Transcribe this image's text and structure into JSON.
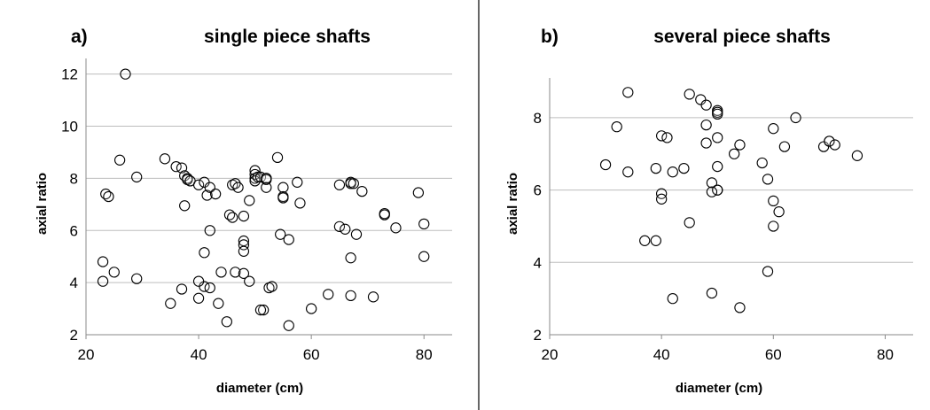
{
  "chart_data": [
    {
      "type": "scatter",
      "panel_label": "a)",
      "title": "single piece shafts",
      "xlabel": "diameter (cm)",
      "ylabel": "axial ratio",
      "xlim": [
        20,
        85
      ],
      "ylim": [
        2,
        12.6
      ],
      "xticks": [
        20,
        40,
        60,
        80
      ],
      "yticks": [
        2,
        4,
        6,
        8,
        10,
        12
      ],
      "grid": "horizontal",
      "legend": "none",
      "x": [
        27,
        26,
        29,
        23.5,
        24,
        23,
        23,
        25,
        29,
        34,
        36,
        37,
        37.5,
        38,
        38,
        38.5,
        37.5,
        40,
        41,
        41.5,
        42,
        43,
        41,
        42,
        41,
        40,
        42,
        35,
        37,
        43.5,
        44,
        45,
        40,
        45.5,
        46,
        46.5,
        46,
        47,
        48,
        48,
        48,
        48,
        46.5,
        48,
        49,
        49,
        50,
        50,
        50,
        50,
        50.5,
        51,
        52,
        52,
        52,
        52,
        51.5,
        52.5,
        54,
        55,
        55,
        55,
        54.5,
        56,
        57.5,
        58,
        53,
        51,
        56,
        60,
        63,
        65,
        65,
        66,
        67,
        67,
        67.5,
        68,
        69,
        67,
        71,
        67,
        73,
        73,
        75,
        79,
        80,
        80,
        52
      ],
      "y": [
        12,
        8.7,
        8.05,
        7.4,
        7.3,
        4.8,
        4.05,
        4.4,
        4.15,
        8.75,
        8.45,
        8.4,
        8.1,
        8.0,
        7.95,
        7.9,
        6.95,
        7.75,
        7.85,
        7.35,
        7.65,
        7.4,
        5.15,
        6.0,
        3.85,
        4.05,
        3.8,
        3.2,
        3.75,
        3.2,
        4.4,
        2.5,
        3.4,
        6.6,
        7.75,
        7.8,
        6.5,
        7.65,
        6.55,
        5.6,
        5.45,
        5.2,
        4.4,
        4.35,
        7.15,
        4.05,
        8.3,
        8.15,
        8.0,
        7.9,
        8.05,
        8.05,
        8.0,
        8.0,
        7.95,
        7.65,
        2.95,
        3.8,
        8.8,
        7.65,
        7.3,
        7.25,
        5.85,
        5.65,
        7.85,
        7.05,
        3.85,
        2.95,
        2.35,
        3.0,
        3.55,
        7.75,
        6.15,
        6.05,
        7.85,
        7.8,
        7.8,
        5.85,
        7.5,
        4.95,
        3.45,
        3.5,
        6.65,
        6.6,
        6.1,
        7.45,
        6.25,
        5.0,
        8.0
      ]
    },
    {
      "type": "scatter",
      "panel_label": "b)",
      "title": "several piece shafts",
      "xlabel": "diameter (cm)",
      "ylabel": "axial ratio",
      "xlim": [
        20,
        85
      ],
      "ylim": [
        2,
        9.1
      ],
      "xticks": [
        20,
        40,
        60,
        80
      ],
      "yticks": [
        2,
        4,
        6,
        8
      ],
      "grid": "horizontal",
      "legend": "none",
      "x": [
        34,
        32,
        30,
        34,
        39,
        40,
        41,
        40,
        40,
        37,
        39,
        42,
        44,
        45,
        45,
        47,
        48,
        48,
        48,
        49,
        50,
        50,
        50,
        50,
        50,
        50,
        50,
        49,
        53,
        54,
        58,
        59,
        60,
        60,
        60,
        61,
        62,
        64,
        69,
        70,
        70,
        71,
        75,
        42,
        49,
        54,
        59
      ],
      "y": [
        8.7,
        7.75,
        6.7,
        6.5,
        6.6,
        7.5,
        7.45,
        5.9,
        5.75,
        4.6,
        4.6,
        6.5,
        6.6,
        8.65,
        5.1,
        8.5,
        8.35,
        7.8,
        7.3,
        6.2,
        8.2,
        8.15,
        8.1,
        7.45,
        6.65,
        6.0,
        6.0,
        5.95,
        7.0,
        7.25,
        6.75,
        6.3,
        7.7,
        5.7,
        5.0,
        5.4,
        7.2,
        8.0,
        7.2,
        7.35,
        7.35,
        7.25,
        6.95,
        3.0,
        3.15,
        2.75,
        3.75
      ]
    }
  ]
}
